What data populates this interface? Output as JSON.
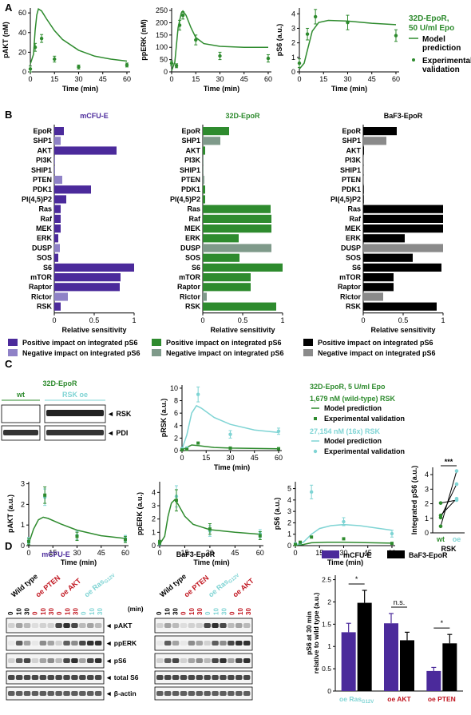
{
  "panel_labels": {
    "a": "A",
    "b": "B",
    "c": "C",
    "d": "D"
  },
  "colors": {
    "green": "#2e8b2e",
    "green_dark": "#1f7a1f",
    "teal": "#7fd4d4",
    "purple": "#4b2a9b",
    "purple_light": "#8f82c7",
    "black": "#000000",
    "grey": "#8a8a8a",
    "grey_green": "#7f9a8a",
    "red": "#c0141e"
  },
  "panelA": {
    "legend_title": [
      "32D-EpoR,",
      "50 U/ml Epo"
    ],
    "legend_model": [
      "Model",
      "prediction"
    ],
    "legend_exp": [
      "Experimental",
      "validation"
    ],
    "xlabel": "Time (min)"
  },
  "panelB": {
    "titles": [
      "mCFU-E",
      "32D-EpoR",
      "BaF3-EpoR"
    ],
    "xlabel": "Relative sensitivity",
    "legends": [
      {
        "pos": "Positive impact on integrated pS6",
        "neg": "Negative impact on integrated pS6"
      },
      {
        "pos": "Positive impact on integrated pS6",
        "neg": "Negative impact on integrated pS6"
      },
      {
        "pos": "Positive impact on integrated pS6",
        "neg": "Negative impact on integrated pS6"
      }
    ]
  },
  "panelC": {
    "blot_title": "32D-EpoR",
    "wt": "wt",
    "oe": "RSK oe",
    "rsk": "◄ RSK",
    "pdi": "◄ PDI",
    "legend_title": "32D-EpoR, 5 U/ml Epo",
    "legend_wt": "1,679 nM (wild-type) RSK",
    "legend_oe": "27,154 nM (16x) RSK",
    "legend_model": "Model prediction",
    "legend_exp": "Experimental validation",
    "xlabel": "Time (min)",
    "integrated_ylabel": "Integrated pS6 (a.u.)",
    "integrated_x": [
      "wt",
      "oe"
    ],
    "integrated_xlabel": "RSK",
    "sig": "***"
  },
  "panelD": {
    "mcfue_title": "mCFU-E",
    "baf3_title": "BaF3-EpoR",
    "lanes_wt": "Wild type",
    "lanes_pten": "oe PTEN",
    "lanes_akt": "oe AKT",
    "lanes_ras": "oe Ras",
    "ras_sub": "G12V",
    "time_unit": "(min)",
    "times": [
      "0",
      "10",
      "30"
    ],
    "blot_rows": [
      "◄ pAKT",
      "◄ ppERK",
      "◄ pS6",
      "◄ total S6",
      "◄ β-actin"
    ],
    "bar_legend": [
      "mCFU-E",
      "BaF3-EpoR"
    ],
    "bar_ylabel": [
      "pS6 at 30 min",
      "relative to wild type (a.u.)"
    ],
    "bar_sig": [
      "*",
      "n.s.",
      "*"
    ],
    "bar_groups": [
      "oe Ras",
      "oe AKT",
      "oe PTEN"
    ]
  },
  "chart_data": [
    {
      "id": "A1",
      "type": "line",
      "ylabel": "pAKT (nM)",
      "xlabel": "Time (min)",
      "xlim": [
        0,
        62
      ],
      "ylim": [
        0,
        65
      ],
      "xticks": [
        0,
        15,
        30,
        45,
        60
      ],
      "yticks": [
        0,
        20,
        40,
        60
      ],
      "model": [
        [
          0,
          8
        ],
        [
          2,
          18
        ],
        [
          3,
          42
        ],
        [
          4,
          58
        ],
        [
          5,
          64
        ],
        [
          7,
          62
        ],
        [
          10,
          54
        ],
        [
          15,
          42
        ],
        [
          20,
          33
        ],
        [
          30,
          22
        ],
        [
          40,
          16
        ],
        [
          50,
          13
        ],
        [
          60,
          11
        ]
      ],
      "exp": [
        [
          0,
          3
        ],
        [
          3,
          25
        ],
        [
          7,
          34
        ],
        [
          15,
          13
        ],
        [
          30,
          5
        ],
        [
          60,
          7
        ]
      ],
      "err": [
        3,
        4,
        4,
        3,
        2,
        2
      ]
    },
    {
      "id": "A2",
      "type": "line",
      "ylabel": "ppERK (nM)",
      "xlabel": "Time (min)",
      "xlim": [
        0,
        62
      ],
      "ylim": [
        0,
        260
      ],
      "xticks": [
        0,
        15,
        30,
        45,
        60
      ],
      "yticks": [
        0,
        50,
        100,
        150,
        200,
        250
      ],
      "model": [
        [
          0,
          5
        ],
        [
          2,
          40
        ],
        [
          4,
          180
        ],
        [
          6,
          240
        ],
        [
          7,
          248
        ],
        [
          9,
          230
        ],
        [
          12,
          180
        ],
        [
          15,
          140
        ],
        [
          20,
          115
        ],
        [
          30,
          104
        ],
        [
          45,
          100
        ],
        [
          60,
          100
        ]
      ],
      "exp": [
        [
          0,
          35
        ],
        [
          3,
          25
        ],
        [
          5,
          190
        ],
        [
          7,
          230
        ],
        [
          15,
          130
        ],
        [
          30,
          65
        ],
        [
          60,
          55
        ]
      ],
      "err": [
        10,
        8,
        20,
        15,
        20,
        15,
        15
      ]
    },
    {
      "id": "A3",
      "type": "line",
      "ylabel": "pS6 (a.u.)",
      "xlabel": "Time (min)",
      "xlim": [
        0,
        62
      ],
      "ylim": [
        0,
        4.4
      ],
      "xticks": [
        0,
        15,
        30,
        45,
        60
      ],
      "yticks": [
        0,
        1,
        2,
        3,
        4
      ],
      "model": [
        [
          0,
          0.2
        ],
        [
          3,
          0.6
        ],
        [
          5,
          1.5
        ],
        [
          8,
          2.8
        ],
        [
          12,
          3.4
        ],
        [
          18,
          3.55
        ],
        [
          30,
          3.5
        ],
        [
          45,
          3.35
        ],
        [
          60,
          3.25
        ]
      ],
      "exp": [
        [
          0,
          0.6
        ],
        [
          5,
          2.6
        ],
        [
          10,
          3.8
        ],
        [
          30,
          3.4
        ],
        [
          60,
          2.5
        ]
      ],
      "err": [
        0.3,
        0.4,
        0.5,
        0.5,
        0.4
      ]
    },
    {
      "id": "B",
      "type": "bar",
      "categories": [
        "EpoR",
        "SHP1",
        "AKT",
        "PI3K",
        "SHIP1",
        "PTEN",
        "PDK1",
        "PI(4,5)P2",
        "Ras",
        "Raf",
        "MEK",
        "ERK",
        "DUSP",
        "SOS",
        "S6",
        "mTOR",
        "Raptor",
        "Rictor",
        "RSK"
      ],
      "xlim": [
        0,
        1
      ],
      "xticks": [
        0,
        0.5,
        1
      ],
      "series": [
        {
          "name": "mCFU-E",
          "values": [
            0.12,
            0.08,
            0.78,
            0.01,
            0.01,
            0.1,
            0.46,
            0.15,
            0.08,
            0.08,
            0.08,
            0.05,
            0.07,
            0.05,
            1.0,
            0.83,
            0.82,
            0.17,
            0.08
          ],
          "negative": [
            false,
            true,
            false,
            true,
            true,
            true,
            false,
            false,
            false,
            false,
            false,
            false,
            true,
            false,
            false,
            false,
            false,
            true,
            false
          ]
        },
        {
          "name": "32D-EpoR",
          "values": [
            0.33,
            0.22,
            0.03,
            0.01,
            0.01,
            0.02,
            0.03,
            0.03,
            0.85,
            0.86,
            0.86,
            0.45,
            0.86,
            0.46,
            1.0,
            0.6,
            0.6,
            0.05,
            0.92
          ],
          "negative": [
            false,
            true,
            false,
            true,
            true,
            true,
            false,
            false,
            false,
            false,
            false,
            false,
            true,
            false,
            false,
            false,
            false,
            true,
            false
          ]
        },
        {
          "name": "BaF3-EpoR",
          "values": [
            0.42,
            0.29,
            0.01,
            0.005,
            0.005,
            0.005,
            0.005,
            0.005,
            1.0,
            1.0,
            1.0,
            0.52,
            1.0,
            0.62,
            0.98,
            0.38,
            0.38,
            0.25,
            0.92
          ],
          "negative": [
            false,
            true,
            false,
            true,
            true,
            true,
            false,
            false,
            false,
            false,
            false,
            false,
            true,
            false,
            false,
            false,
            false,
            true,
            false
          ]
        }
      ]
    },
    {
      "id": "C1",
      "type": "line",
      "ylabel": "pRSK (a.u.)",
      "xlabel": "Time (min)",
      "xlim": [
        0,
        62
      ],
      "ylim": [
        0,
        10.5
      ],
      "xticks": [
        0,
        15,
        30,
        45,
        60
      ],
      "yticks": [
        0,
        2,
        4,
        6,
        8,
        10
      ],
      "series": [
        {
          "name": "wt model",
          "model": [
            [
              0,
              0.1
            ],
            [
              3,
              0.5
            ],
            [
              6,
              0.9
            ],
            [
              10,
              0.8
            ],
            [
              20,
              0.5
            ],
            [
              30,
              0.4
            ],
            [
              60,
              0.3
            ]
          ]
        },
        {
          "name": "oe model",
          "model": [
            [
              0,
              0.2
            ],
            [
              3,
              2.5
            ],
            [
              6,
              6.0
            ],
            [
              9,
              7.2
            ],
            [
              12,
              6.8
            ],
            [
              20,
              5.3
            ],
            [
              30,
              4.2
            ],
            [
              45,
              3.3
            ],
            [
              60,
              2.9
            ]
          ]
        }
      ],
      "exp_wt": [
        [
          0,
          0.1
        ],
        [
          3,
          0.2
        ],
        [
          10,
          1.2
        ],
        [
          30,
          0.4
        ],
        [
          60,
          0.3
        ]
      ],
      "exp_oe": [
        [
          0,
          0.3
        ],
        [
          3,
          0.4
        ],
        [
          10,
          9.0
        ],
        [
          30,
          2.6
        ],
        [
          60,
          3.1
        ]
      ],
      "err_oe": [
        0.2,
        0.2,
        1.2,
        0.6,
        0.5
      ]
    },
    {
      "id": "C2",
      "type": "line",
      "ylabel": "pAKT (a.u.)",
      "xlabel": "Time (min)",
      "xlim": [
        0,
        62
      ],
      "ylim": [
        0,
        3.1
      ],
      "xticks": [
        0,
        15,
        30,
        45,
        60
      ],
      "yticks": [
        0,
        1,
        2,
        3
      ],
      "model": [
        [
          0,
          0.1
        ],
        [
          3,
          0.8
        ],
        [
          6,
          1.25
        ],
        [
          9,
          1.38
        ],
        [
          12,
          1.32
        ],
        [
          20,
          1.05
        ],
        [
          30,
          0.75
        ],
        [
          45,
          0.48
        ],
        [
          60,
          0.35
        ]
      ],
      "exp_wt": [
        [
          0,
          0.2
        ],
        [
          10,
          2.45
        ],
        [
          30,
          0.45
        ],
        [
          60,
          0.3
        ]
      ],
      "exp_oe": [
        [
          0,
          0.25
        ],
        [
          10,
          2.35
        ],
        [
          30,
          0.5
        ],
        [
          60,
          0.35
        ]
      ],
      "err": [
        0.15,
        0.4,
        0.2,
        0.15
      ]
    },
    {
      "id": "C3",
      "type": "line",
      "ylabel": "ppERK (a.u.)",
      "xlabel": "Time (min)",
      "xlim": [
        0,
        62
      ],
      "ylim": [
        0,
        4.8
      ],
      "xticks": [
        0,
        15,
        30,
        45,
        60
      ],
      "yticks": [
        0,
        1,
        2,
        3,
        4
      ],
      "model": [
        [
          0,
          0.1
        ],
        [
          3,
          0.7
        ],
        [
          5,
          2.2
        ],
        [
          7,
          3.2
        ],
        [
          9,
          3.45
        ],
        [
          11,
          3.1
        ],
        [
          15,
          2.2
        ],
        [
          20,
          1.6
        ],
        [
          30,
          1.2
        ],
        [
          45,
          1.0
        ],
        [
          60,
          0.85
        ]
      ],
      "exp_wt": [
        [
          0,
          0.25
        ],
        [
          10,
          3.4
        ],
        [
          30,
          1.25
        ],
        [
          60,
          0.75
        ]
      ],
      "exp_oe": [
        [
          0,
          0.2
        ],
        [
          10,
          3.7
        ],
        [
          30,
          1.1
        ],
        [
          60,
          0.9
        ]
      ],
      "err": [
        0.15,
        0.8,
        0.4,
        0.3
      ]
    },
    {
      "id": "C4",
      "type": "line",
      "ylabel": "pS6 (a.u.)",
      "xlabel": "Time (min)",
      "xlim": [
        0,
        62
      ],
      "ylim": [
        0,
        5.6
      ],
      "xticks": [
        0,
        15,
        30,
        45,
        60
      ],
      "yticks": [
        0,
        1,
        2,
        3,
        4,
        5
      ],
      "series": [
        {
          "name": "wt model",
          "model": [
            [
              0,
              0.05
            ],
            [
              5,
              0.1
            ],
            [
              10,
              0.25
            ],
            [
              20,
              0.3
            ],
            [
              30,
              0.3
            ],
            [
              60,
              0.22
            ]
          ]
        },
        {
          "name": "oe model",
          "model": [
            [
              0,
              0.05
            ],
            [
              5,
              0.3
            ],
            [
              10,
              1.0
            ],
            [
              15,
              1.5
            ],
            [
              22,
              1.75
            ],
            [
              30,
              1.85
            ],
            [
              40,
              1.75
            ],
            [
              50,
              1.55
            ],
            [
              60,
              1.35
            ]
          ]
        }
      ],
      "exp_wt": [
        [
          0,
          0.1
        ],
        [
          3,
          0.3
        ],
        [
          10,
          0.75
        ],
        [
          30,
          0.6
        ],
        [
          60,
          0.2
        ]
      ],
      "exp_oe": [
        [
          0,
          0.15
        ],
        [
          3,
          0.25
        ],
        [
          10,
          4.7
        ],
        [
          30,
          2.1
        ],
        [
          60,
          1.05
        ]
      ],
      "err_oe": [
        0.1,
        0.1,
        0.6,
        0.35,
        0.3
      ]
    },
    {
      "id": "C5",
      "type": "scatter",
      "ylabel": "Integrated pS6 (a.u.)",
      "categories": [
        "wt",
        "oe"
      ],
      "ylim": [
        0,
        4.5
      ],
      "yticks": [
        0,
        1,
        2,
        3,
        4
      ],
      "pairs": [
        [
          0.45,
          4.25
        ],
        [
          1.05,
          3.35
        ],
        [
          1.2,
          2.35
        ],
        [
          2.05,
          2.25
        ]
      ]
    },
    {
      "id": "D",
      "type": "bar",
      "categories": [
        "oe RasG12V",
        "oe AKT",
        "oe PTEN"
      ],
      "ylim": [
        0,
        2.6
      ],
      "yticks": [
        0,
        0.5,
        1,
        1.5,
        2,
        2.5
      ],
      "series": [
        {
          "name": "mCFU-E",
          "values": [
            1.32,
            1.52,
            0.45
          ],
          "err": [
            0.2,
            0.22,
            0.08
          ]
        },
        {
          "name": "BaF3-EpoR",
          "values": [
            1.98,
            1.14,
            1.07
          ],
          "err": [
            0.28,
            0.18,
            0.2
          ]
        }
      ]
    }
  ]
}
